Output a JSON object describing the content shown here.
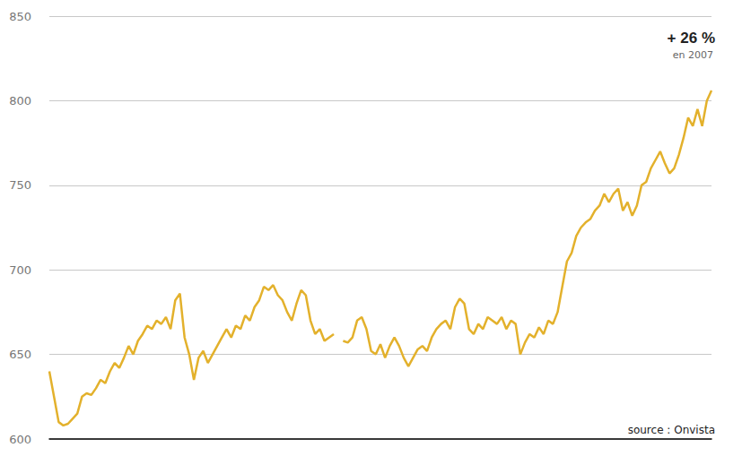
{
  "chart_data": {
    "type": "line",
    "annotations": [
      "+ 26 %",
      "en 2007",
      "source : Onvista"
    ],
    "categories": [
      null,
      null,
      null,
      null,
      null,
      null,
      null,
      null,
      null,
      null,
      null,
      null,
      null,
      null,
      null,
      null,
      null,
      null,
      null,
      null,
      null,
      null,
      null,
      null,
      null,
      null,
      null,
      null,
      null,
      null,
      null,
      null,
      null,
      null,
      null,
      null,
      null,
      null,
      null,
      null,
      null,
      null,
      null,
      null,
      null,
      null,
      null,
      null,
      null,
      null,
      null,
      null,
      null,
      null,
      null,
      null,
      null,
      null,
      null,
      null,
      null,
      null,
      null,
      null,
      null,
      null,
      null,
      null,
      null,
      null,
      null,
      null,
      null,
      null,
      null,
      null,
      null,
      null,
      null,
      null,
      null,
      null,
      null,
      null,
      null,
      null,
      null,
      null,
      null,
      null,
      null,
      null,
      null,
      null,
      null,
      null,
      null,
      null,
      null,
      null,
      null,
      null,
      null,
      null,
      null,
      null,
      null,
      null,
      null,
      null,
      null,
      null,
      null,
      null,
      null,
      null,
      null,
      null,
      null,
      null,
      null,
      null,
      null,
      null,
      null,
      null,
      null,
      null,
      null,
      null,
      null,
      null,
      null,
      null,
      null,
      null,
      null,
      null,
      null,
      null,
      null,
      null,
      null
    ],
    "values": [
      640,
      625,
      610,
      608,
      609,
      612,
      615,
      625,
      627,
      626,
      630,
      635,
      633,
      640,
      645,
      642,
      648,
      655,
      650,
      658,
      662,
      667,
      665,
      670,
      668,
      672,
      665,
      682,
      686,
      660,
      650,
      635,
      648,
      652,
      645,
      650,
      655,
      660,
      665,
      660,
      667,
      665,
      673,
      670,
      678,
      682,
      690,
      688,
      691,
      685,
      682,
      675,
      670,
      680,
      688,
      685,
      670,
      662,
      665,
      658,
      660,
      662,
      null,
      658,
      657,
      660,
      670,
      672,
      665,
      652,
      650,
      656,
      648,
      655,
      660,
      655,
      648,
      643,
      648,
      653,
      655,
      652,
      660,
      665,
      668,
      670,
      665,
      678,
      683,
      680,
      665,
      662,
      668,
      665,
      672,
      670,
      668,
      672,
      665,
      670,
      668,
      650,
      657,
      662,
      660,
      666,
      662,
      670,
      668,
      675,
      690,
      705,
      710,
      720,
      725,
      728,
      730,
      735,
      738,
      745,
      740,
      745,
      748,
      735,
      740,
      732,
      738,
      750,
      752,
      760,
      765,
      770,
      763,
      757,
      760,
      768,
      778,
      790,
      785,
      795,
      785,
      800,
      806
    ],
    "color": "#e3b12c",
    "ylim": [
      600,
      850
    ],
    "yticks": [
      600,
      650,
      700,
      750,
      800,
      850
    ],
    "grid": true,
    "tick_labels": "y"
  }
}
